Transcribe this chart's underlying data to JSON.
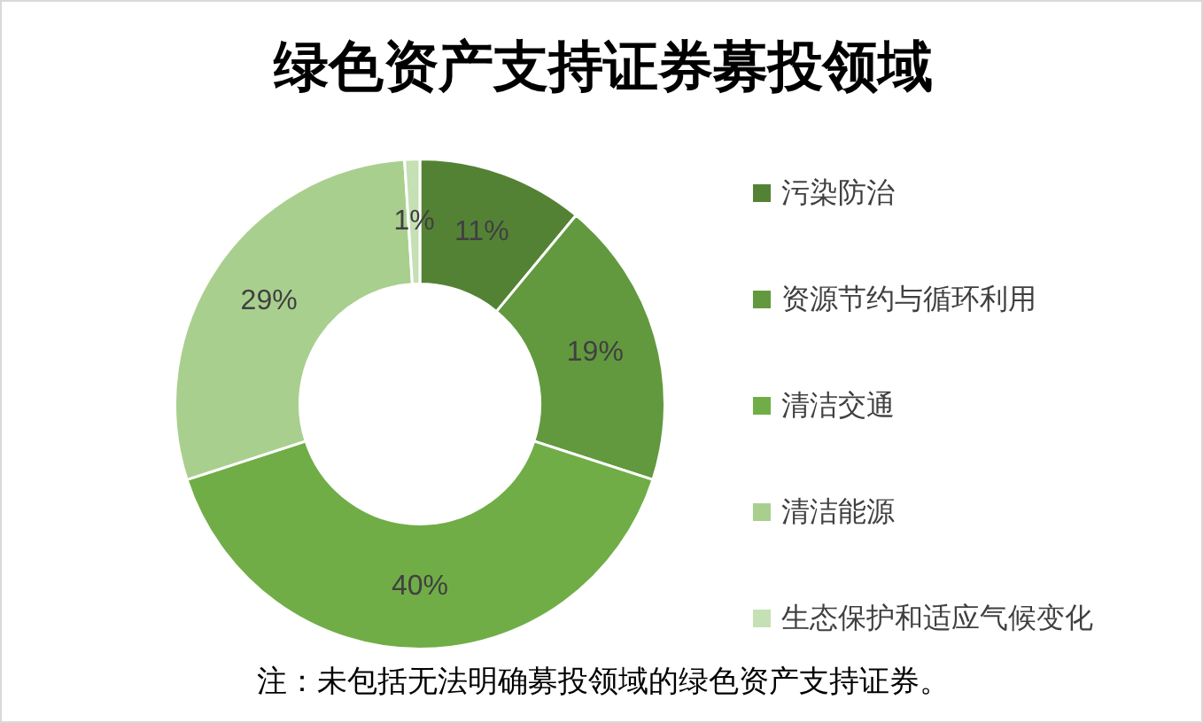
{
  "chart_data": {
    "type": "donut",
    "title": "绿色资产支持证券募投领域",
    "categories": [
      "污染防治",
      "资源节约与循环利用",
      "清洁交通",
      "清洁能源",
      "生态保护和适应气候变化"
    ],
    "values": [
      11,
      19,
      40,
      29,
      1
    ],
    "colors": [
      "#548235",
      "#62993e",
      "#70ad47",
      "#a9cf8e",
      "#c5e0b4"
    ],
    "value_labels": [
      "11%",
      "19%",
      "40%",
      "29%",
      "1%"
    ],
    "legend": "right",
    "annotations": [
      "注：未包括无法明确募投领域的绿色资产支持证券。"
    ]
  }
}
